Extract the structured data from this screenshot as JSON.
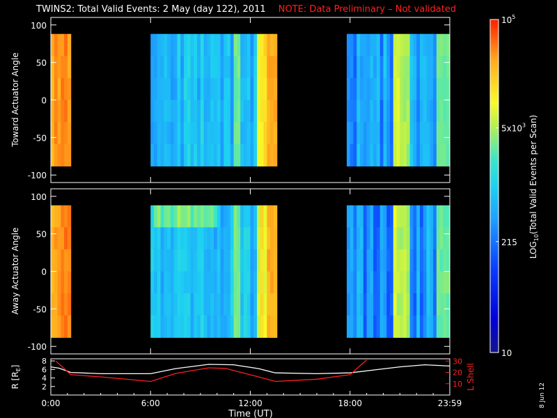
{
  "title": "TWINS2: Total Valid Events:  2 May (day 122), 2011",
  "note": "NOTE: Data Preliminary – Not validated",
  "stamp": "8 Jun 12",
  "chart_data": [
    {
      "type": "heatmap",
      "panel": "toward",
      "ylabel": "Toward Actuator Angle",
      "yticks": [
        100,
        50,
        0,
        -50,
        -100
      ],
      "ylim": [
        -110,
        110
      ],
      "xlim_hours": [
        0,
        24
      ],
      "angle_range": [
        -88,
        88
      ],
      "data_intervals_hours": [
        [
          0.0,
          1.2
        ],
        [
          6.1,
          13.7
        ],
        [
          17.9,
          24.0
        ]
      ],
      "colorscale": "log"
    },
    {
      "type": "heatmap",
      "panel": "away",
      "ylabel": "Away Actuator Angle",
      "yticks": [
        100,
        50,
        0,
        -50,
        -100
      ],
      "ylim": [
        -110,
        110
      ],
      "xlim_hours": [
        0,
        24
      ],
      "angle_range": [
        -88,
        88
      ],
      "data_intervals_hours": [
        [
          0.0,
          1.2
        ],
        [
          6.1,
          13.7
        ],
        [
          17.9,
          24.0
        ]
      ],
      "colorscale": "log"
    },
    {
      "type": "line",
      "panel": "orbit",
      "xlabel": "Time (UT)",
      "xticks": [
        "0:00",
        "6:00",
        "12:00",
        "18:00",
        "23:59"
      ],
      "ylabel_left": "R [R",
      "ylabel_left_sub": "E",
      "ylabel_left_end": "]",
      "ylabel_right": "L Shell",
      "yticks_left": [
        2,
        4,
        6,
        8
      ],
      "yticks_right": [
        10,
        20,
        30
      ],
      "ylim_left": [
        0,
        8.5
      ],
      "ylim_right": [
        0,
        32
      ],
      "series": [
        {
          "axis": "left",
          "color": "#ffffff",
          "x": [
            0,
            0.5,
            1.2,
            3,
            6,
            7.5,
            9.5,
            11,
            12.5,
            13.5,
            16,
            18,
            19.5,
            21,
            22.5,
            24
          ],
          "y": [
            6.6,
            6.3,
            5.3,
            5.0,
            5.0,
            6.2,
            7.2,
            7.1,
            6.2,
            5.2,
            5.0,
            5.2,
            5.9,
            6.6,
            7.1,
            6.8
          ]
        },
        {
          "axis": "right",
          "color": "#ff2020",
          "x": [
            0.3,
            1.2,
            3,
            6,
            7.5,
            9.5,
            10.5,
            12.5,
            13.5,
            16,
            18,
            19
          ],
          "y": [
            30,
            18,
            16,
            12,
            19,
            24,
            23.5,
            16,
            12,
            14,
            18,
            31
          ]
        }
      ]
    }
  ],
  "colorbar": {
    "title": "LOG",
    "title_sub": "10",
    "title_rest": "(Total Valid Events per Scan)",
    "tick_labels": [
      "10",
      "215",
      "5x10",
      "10"
    ],
    "tick_sup": [
      "",
      "",
      "3",
      "5"
    ],
    "scale": "log",
    "range": [
      10,
      100000
    ]
  }
}
